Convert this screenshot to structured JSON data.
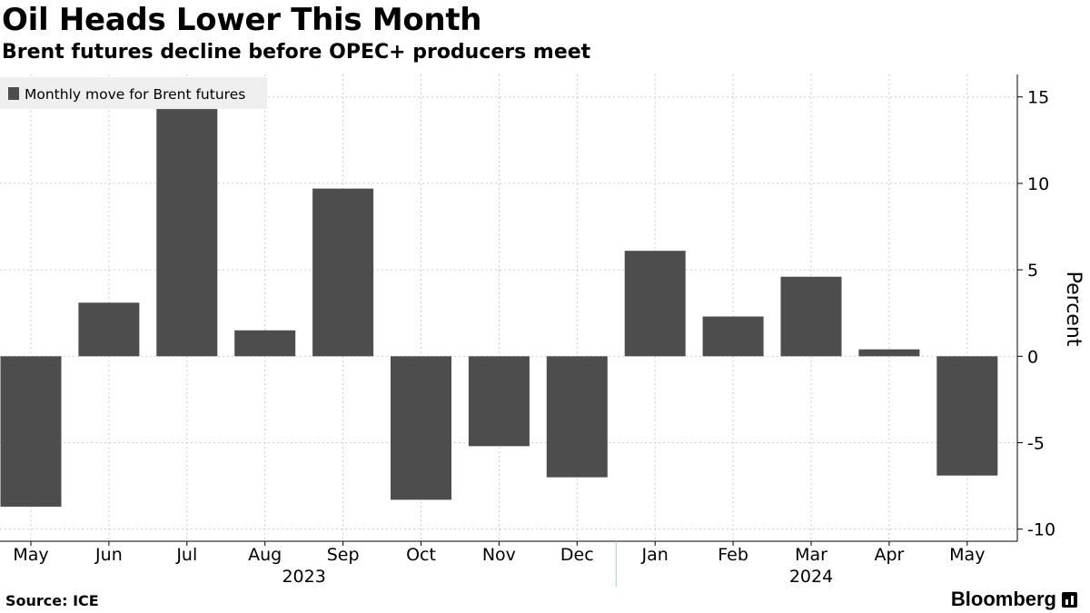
{
  "header": {
    "title": "Oil Heads Lower This Month",
    "subtitle": "Brent futures decline before OPEC+ producers meet"
  },
  "footer": {
    "source": "Source: ICE",
    "brand": "Bloomberg"
  },
  "colors": {
    "bar": "#4d4d4d",
    "grid": "#cccccc",
    "axis": "#000000",
    "legend_bg": "#efefef"
  },
  "chart_data": {
    "type": "bar",
    "title": "Oil Heads Lower This Month",
    "subtitle": "Brent futures decline before OPEC+ producers meet",
    "categories": [
      "May",
      "Jun",
      "Jul",
      "Aug",
      "Sep",
      "Oct",
      "Nov",
      "Dec",
      "Jan",
      "Feb",
      "Mar",
      "Apr",
      "May"
    ],
    "year_labels": [
      {
        "label": "2023",
        "first_index": 0,
        "last_index": 7
      },
      {
        "label": "2024",
        "first_index": 8,
        "last_index": 12
      }
    ],
    "series": [
      {
        "name": "Monthly move for Brent futures",
        "values": [
          -8.7,
          3.1,
          14.3,
          1.5,
          9.7,
          -8.3,
          -5.2,
          -7.0,
          6.1,
          2.3,
          4.6,
          0.4,
          -6.9
        ]
      }
    ],
    "xlabel": "",
    "ylabel": "Percent",
    "ylim": [
      -10.7,
      16.3
    ],
    "yticks": [
      15,
      10,
      5,
      0,
      -5,
      -10
    ],
    "ytick_labels": [
      "15",
      "10",
      "5",
      "0",
      "-5",
      "-10"
    ],
    "y_axis_side": "right",
    "grid": true,
    "legend_position": "top-left"
  }
}
